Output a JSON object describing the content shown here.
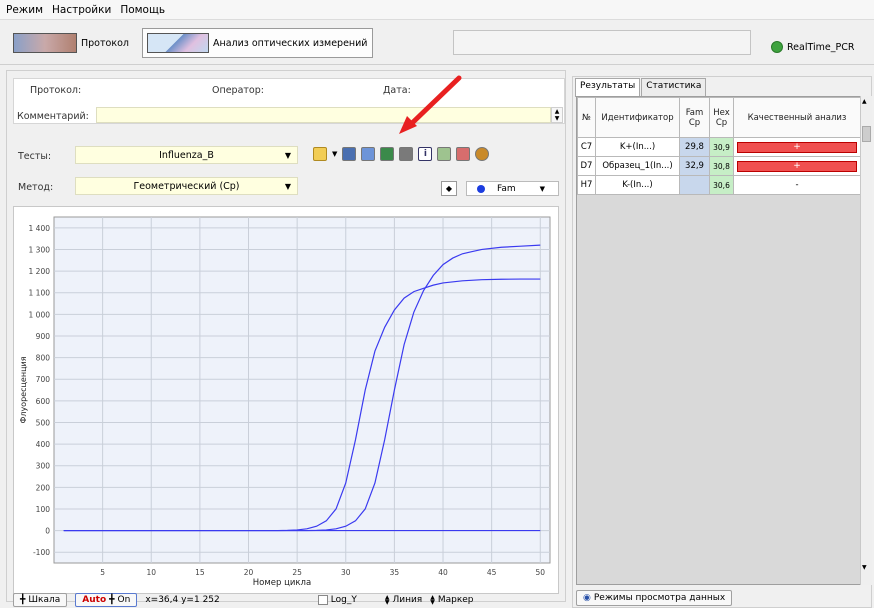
{
  "menu": {
    "items": [
      "Режим",
      "Настройки",
      "Помощь"
    ]
  },
  "toolbar": {
    "protocol_label": "Протокол",
    "analysis_label": "Анализ оптических измерений",
    "realtime_label": "RealTime_PCR"
  },
  "header": {
    "protocol_label": "Протокол:",
    "operator_label": "Оператор:",
    "date_label": "Дата:",
    "comment_label": "Комментарий:"
  },
  "controls": {
    "tests_label": "Тесты:",
    "tests_value": "Influenza_B",
    "method_label": "Метод:",
    "method_value": "Геометрический (Cp)",
    "channel_value": "Fam"
  },
  "chart_data": {
    "type": "line",
    "ylabel": "Флуоресценция",
    "xlabel": "Номер цикла",
    "xlim": [
      0,
      51
    ],
    "ylim": [
      -150,
      1450
    ],
    "y_ticks": [
      -100,
      0,
      100,
      200,
      300,
      400,
      500,
      600,
      700,
      800,
      900,
      1000,
      1100,
      1200,
      1300,
      1400
    ],
    "y_tick_labels": [
      "-100",
      "0",
      "100",
      "200",
      "300",
      "400",
      "500",
      "600",
      "700",
      "800",
      "900",
      "1 000",
      "1 100",
      "1 200",
      "1 300",
      "1 400"
    ],
    "x_ticks": [
      5,
      10,
      15,
      20,
      25,
      30,
      35,
      40,
      45,
      50
    ],
    "grid": true,
    "color": "#3a3af0",
    "series": [
      {
        "x": [
          1,
          23,
          24,
          25,
          26,
          27,
          28,
          29,
          30,
          31,
          32,
          33,
          34,
          35,
          36,
          37,
          38,
          39,
          40,
          42,
          44,
          46,
          48,
          50
        ],
        "values": [
          0,
          0,
          1,
          3,
          8,
          20,
          45,
          100,
          220,
          420,
          650,
          830,
          940,
          1020,
          1075,
          1105,
          1120,
          1135,
          1145,
          1155,
          1160,
          1162,
          1163,
          1163
        ]
      },
      {
        "x": [
          1,
          26,
          27,
          28,
          29,
          30,
          31,
          32,
          33,
          34,
          35,
          36,
          37,
          38,
          39,
          40,
          41,
          42,
          43,
          44,
          46,
          48,
          50
        ],
        "values": [
          0,
          0,
          1,
          3,
          8,
          20,
          45,
          100,
          220,
          420,
          650,
          860,
          1010,
          1110,
          1180,
          1230,
          1260,
          1280,
          1290,
          1300,
          1310,
          1315,
          1320
        ]
      },
      {
        "x": [
          1,
          50
        ],
        "values": [
          0,
          0
        ]
      }
    ]
  },
  "bottom": {
    "scale_label": "Шкала",
    "auto_label": "Auto",
    "on_label": "On",
    "coords": "x=36,4 y=1 252",
    "logy_label": "Log_Y",
    "line_label": "Линия",
    "marker_label": "Маркер"
  },
  "results": {
    "tabs": [
      "Результаты",
      "Статистика"
    ],
    "columns": [
      "№",
      "Идентификатор",
      "Fam Cp",
      "Hex Cp",
      "Качественный анализ"
    ],
    "rows": [
      {
        "no": "C7",
        "id": "K+(In...)",
        "fam": "29,8",
        "hex": "30,9",
        "qual": "+"
      },
      {
        "no": "D7",
        "id": "Образец_1(In...)",
        "fam": "32,9",
        "hex": "30,8",
        "qual": "+"
      },
      {
        "no": "H7",
        "id": "K-(In...)",
        "fam": "",
        "hex": "30,6",
        "qual": "-"
      }
    ],
    "view_modes_label": "Режимы просмотра данных"
  }
}
